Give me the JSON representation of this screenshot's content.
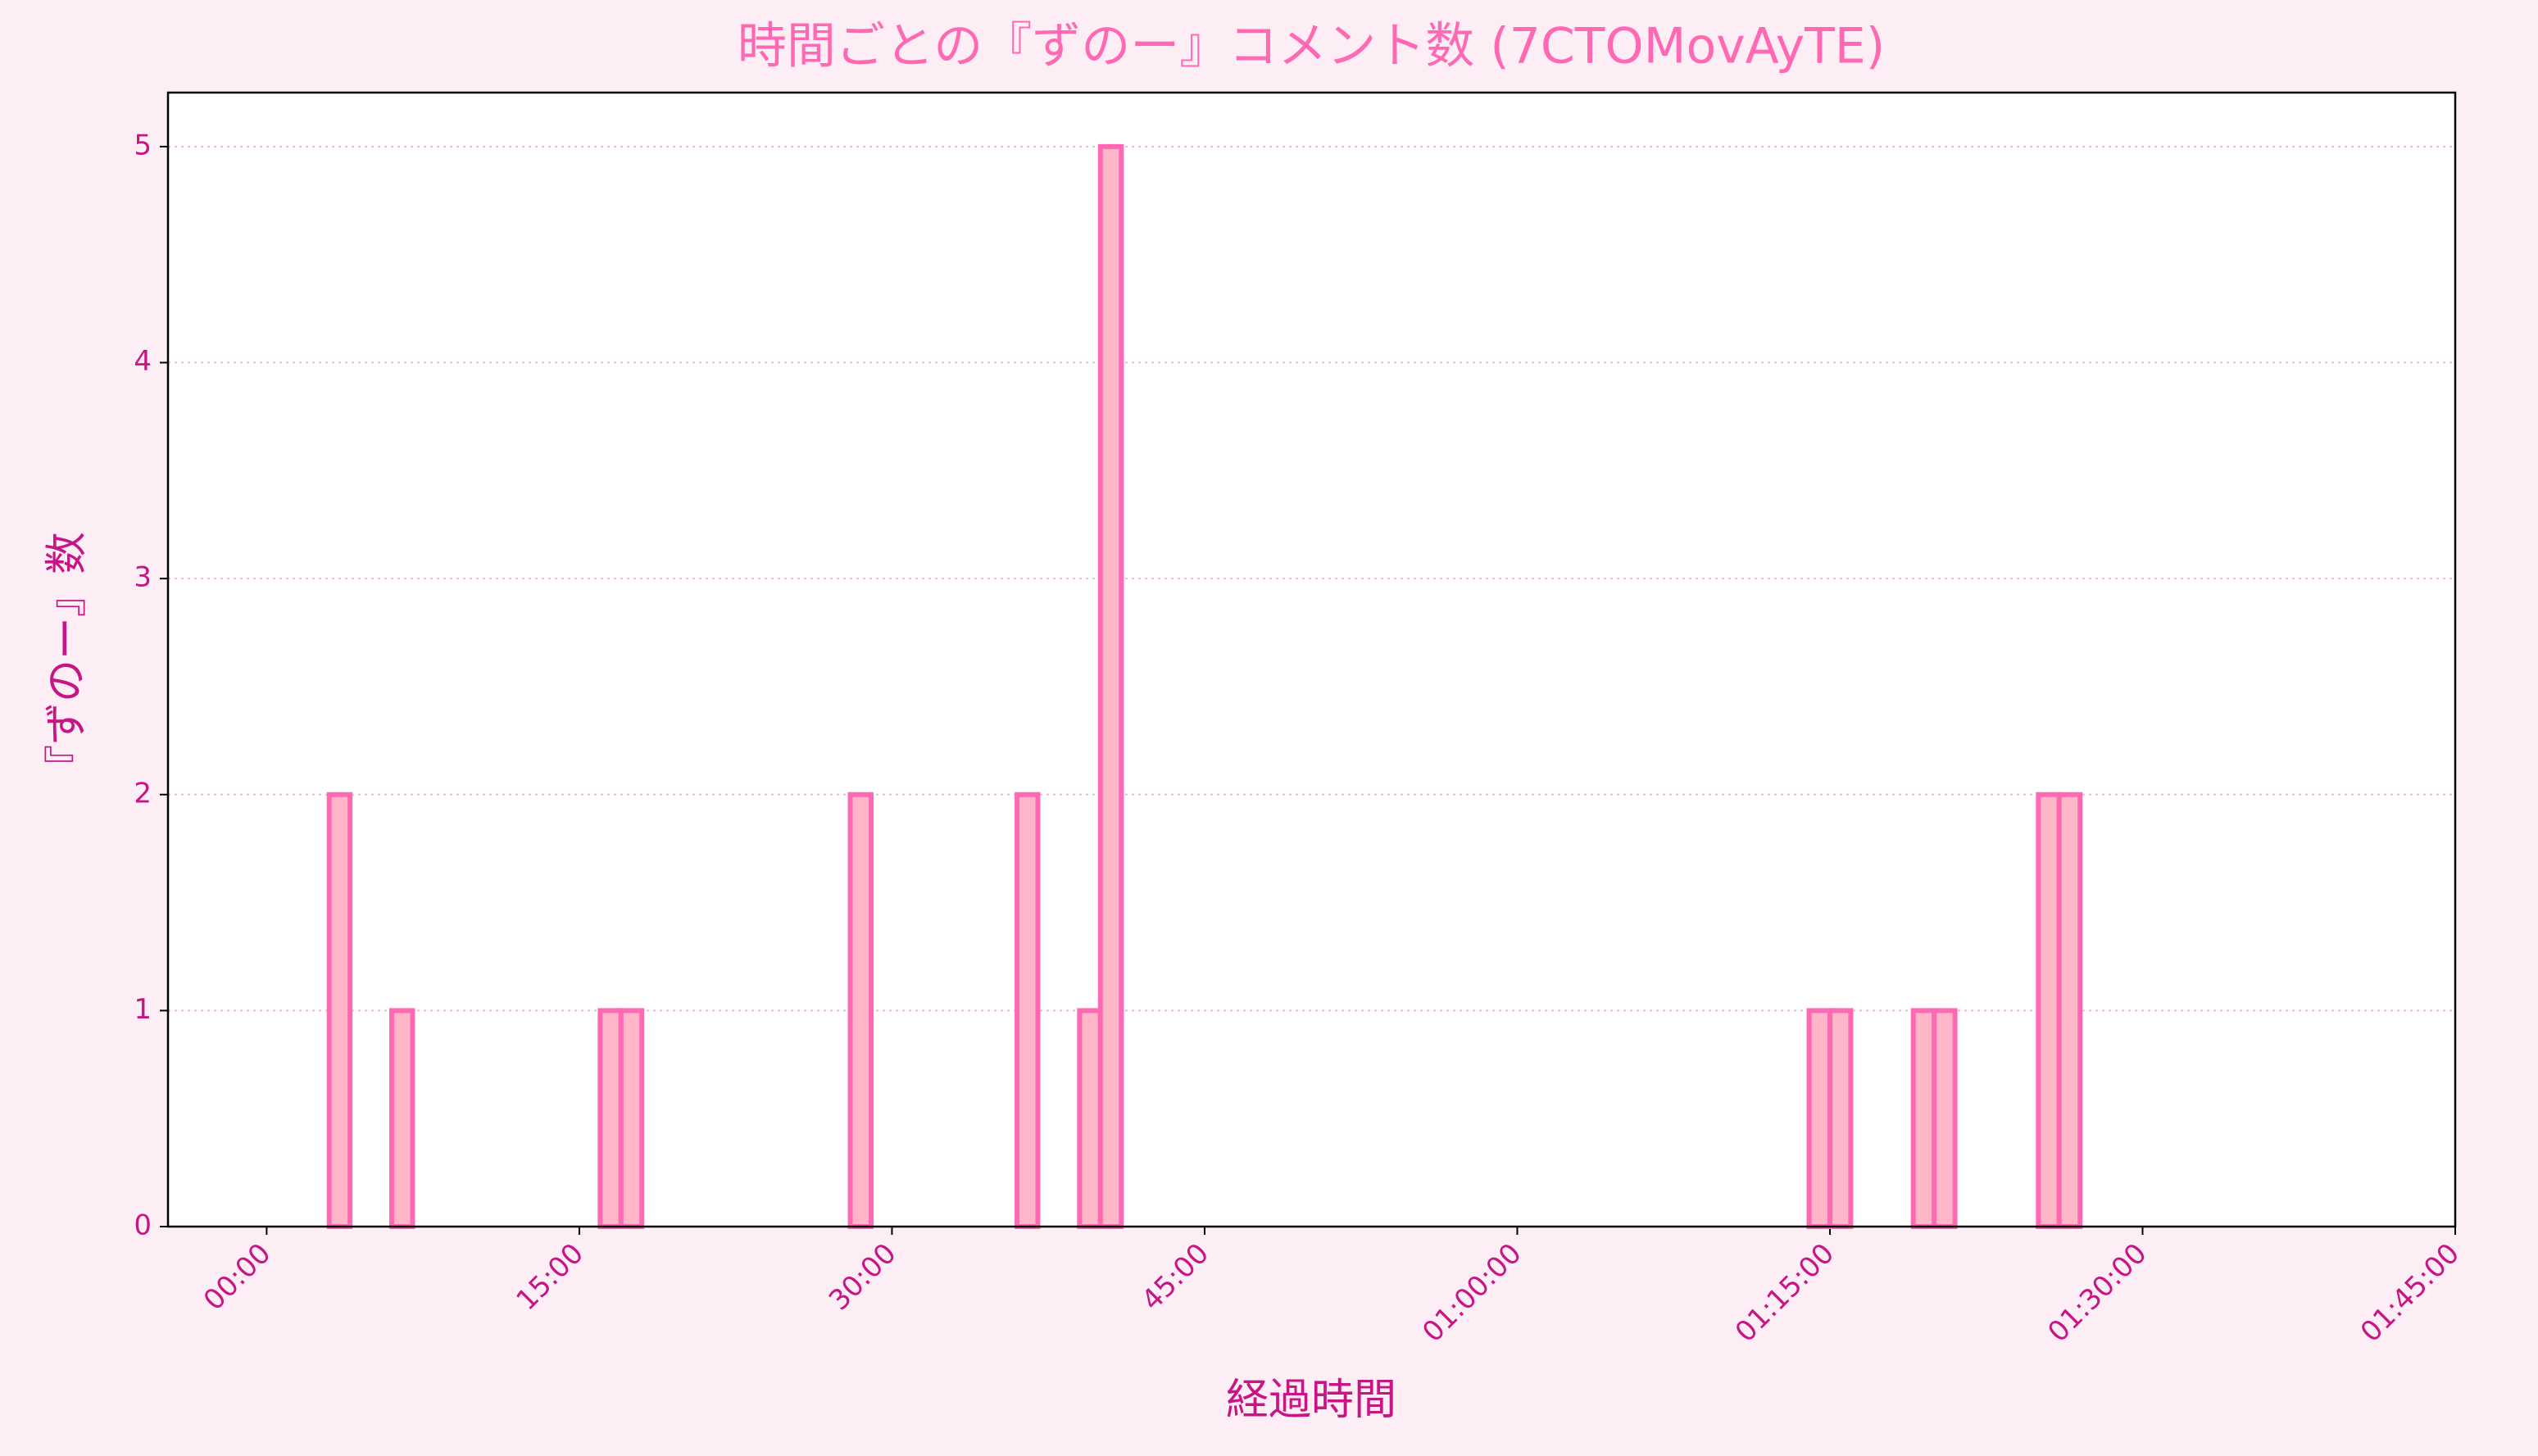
{
  "chart_data": {
    "type": "histogram",
    "title": "時間ごとの『ずのー』コメント数 (7CTOMovAyTE)",
    "x_label": "経過時間",
    "y_label": "『ずのー』数",
    "bins": [
      0,
      60,
      120,
      180,
      240,
      300,
      360,
      420,
      480,
      540,
      600,
      660,
      720,
      780,
      840,
      900,
      960,
      1020,
      1080,
      1140,
      1200,
      1260,
      1320,
      1380,
      1440,
      1500,
      1560,
      1620,
      1680,
      1740,
      1800,
      1860,
      1920,
      1980,
      2040,
      2100,
      2160,
      2220,
      2280,
      2340,
      2400,
      2460,
      2520,
      2580,
      2640,
      2700,
      2760,
      2820,
      2880,
      2940,
      3000,
      3060,
      3120,
      3180,
      3240,
      3300,
      3360,
      3420,
      3480,
      3540,
      3600,
      3660,
      3720,
      3780,
      3840,
      3900,
      3960,
      4020,
      4080,
      4140,
      4200,
      4260,
      4320,
      4380,
      4440,
      4500,
      4560,
      4620,
      4680,
      4740,
      4800,
      4860,
      4920,
      4980,
      5040,
      5100,
      5160,
      5220,
      5280,
      5340,
      5400,
      5460,
      5520,
      5580
    ],
    "values": [
      0,
      0,
      0,
      2,
      0,
      0,
      1,
      0,
      0,
      0,
      0,
      0,
      0,
      0,
      0,
      0,
      1,
      1,
      0,
      0,
      0,
      0,
      0,
      0,
      0,
      0,
      0,
      0,
      2,
      0,
      0,
      0,
      0,
      0,
      0,
      0,
      2,
      0,
      0,
      1,
      5,
      0,
      0,
      0,
      0,
      0,
      0,
      0,
      0,
      0,
      0,
      0,
      0,
      0,
      0,
      0,
      0,
      0,
      0,
      0,
      0,
      0,
      0,
      0,
      0,
      0,
      0,
      0,
      0,
      0,
      0,
      0,
      0,
      0,
      1,
      1,
      0,
      0,
      0,
      1,
      1,
      0,
      0,
      0,
      0,
      2,
      2,
      0,
      0,
      0,
      0,
      0,
      0
    ],
    "color": "#ffb6c8",
    "edgecolor": "#ff69b4",
    "xlim": [
      -284,
      6300
    ],
    "xticks": [
      {
        "value": 0,
        "label": "00:00"
      },
      {
        "value": 900,
        "label": "15:00"
      },
      {
        "value": 1800,
        "label": "30:00"
      },
      {
        "value": 2700,
        "label": "45:00"
      },
      {
        "value": 3600,
        "label": "01:00:00"
      },
      {
        "value": 4500,
        "label": "01:15:00"
      },
      {
        "value": 5400,
        "label": "01:30:00"
      },
      {
        "value": 6300,
        "label": "01:45:00"
      }
    ],
    "ylim": [
      0,
      5.25
    ],
    "yticks": [
      0,
      1,
      2,
      3,
      4,
      5
    ],
    "grid": true
  }
}
